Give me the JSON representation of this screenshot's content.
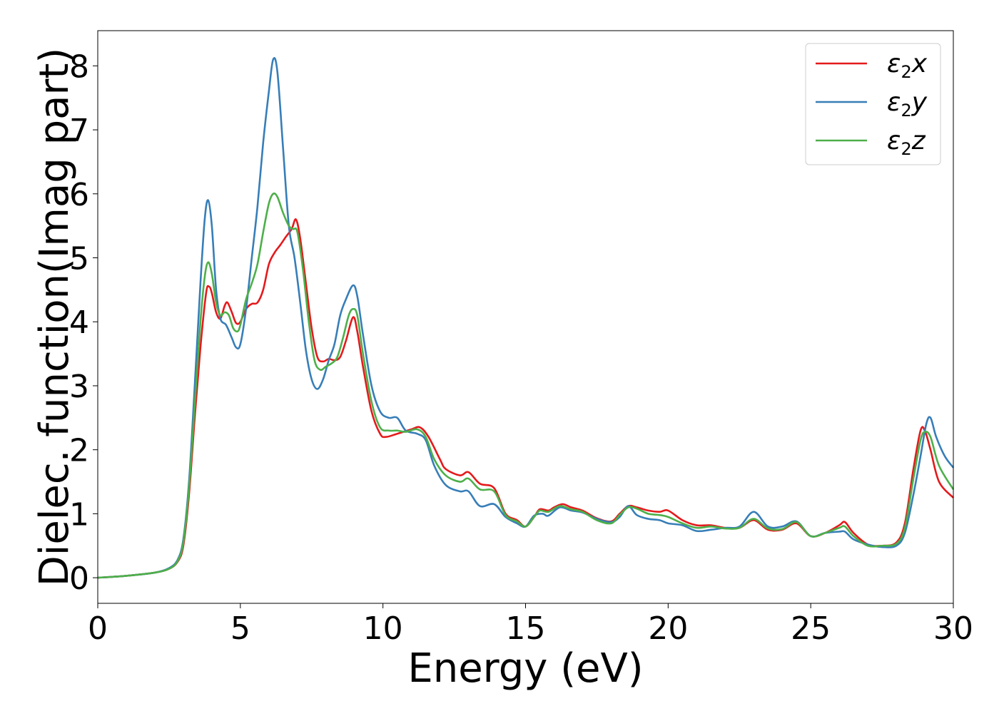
{
  "chart_data": {
    "type": "line",
    "title": "",
    "xlabel": "Energy (eV)",
    "ylabel": "Dielec. function(Imag part)",
    "xlim": [
      0,
      30
    ],
    "ylim": [
      -0.4,
      8.55
    ],
    "xticks": [
      0,
      5,
      10,
      15,
      20,
      25,
      30
    ],
    "xtick_labels": [
      "0",
      "5",
      "10",
      "15",
      "20",
      "25",
      "30"
    ],
    "yticks": [
      0,
      1,
      2,
      3,
      4,
      5,
      6,
      7,
      8
    ],
    "ytick_labels": [
      "0",
      "1",
      "2",
      "3",
      "4",
      "5",
      "6",
      "7",
      "8"
    ],
    "grid": false,
    "legend_position": "top-right",
    "series": [
      {
        "name": "ε₂x",
        "legend": {
          "base": "ε",
          "sub": "2",
          "axis": "x"
        },
        "color": "#e41a1c",
        "points": [
          [
            0,
            0.0
          ],
          [
            1,
            0.03
          ],
          [
            2,
            0.08
          ],
          [
            2.5,
            0.14
          ],
          [
            2.8,
            0.25
          ],
          [
            3.0,
            0.5
          ],
          [
            3.2,
            1.3
          ],
          [
            3.4,
            2.5
          ],
          [
            3.6,
            3.6
          ],
          [
            3.8,
            4.45
          ],
          [
            3.9,
            4.55
          ],
          [
            4.0,
            4.45
          ],
          [
            4.15,
            4.15
          ],
          [
            4.3,
            4.05
          ],
          [
            4.45,
            4.25
          ],
          [
            4.55,
            4.3
          ],
          [
            4.7,
            4.15
          ],
          [
            4.85,
            3.98
          ],
          [
            5.0,
            4.0
          ],
          [
            5.2,
            4.2
          ],
          [
            5.4,
            4.28
          ],
          [
            5.6,
            4.3
          ],
          [
            5.8,
            4.5
          ],
          [
            6.0,
            4.9
          ],
          [
            6.2,
            5.08
          ],
          [
            6.4,
            5.2
          ],
          [
            6.6,
            5.33
          ],
          [
            6.8,
            5.45
          ],
          [
            6.95,
            5.6
          ],
          [
            7.1,
            5.3
          ],
          [
            7.3,
            4.6
          ],
          [
            7.5,
            3.9
          ],
          [
            7.7,
            3.45
          ],
          [
            7.9,
            3.38
          ],
          [
            8.1,
            3.42
          ],
          [
            8.3,
            3.4
          ],
          [
            8.5,
            3.45
          ],
          [
            8.7,
            3.7
          ],
          [
            8.95,
            4.07
          ],
          [
            9.1,
            3.85
          ],
          [
            9.3,
            3.3
          ],
          [
            9.6,
            2.6
          ],
          [
            9.9,
            2.25
          ],
          [
            10.1,
            2.2
          ],
          [
            10.5,
            2.25
          ],
          [
            11.0,
            2.32
          ],
          [
            11.3,
            2.35
          ],
          [
            11.6,
            2.2
          ],
          [
            12.0,
            1.85
          ],
          [
            12.2,
            1.7
          ],
          [
            12.7,
            1.6
          ],
          [
            13.0,
            1.65
          ],
          [
            13.4,
            1.47
          ],
          [
            13.9,
            1.4
          ],
          [
            14.3,
            1.0
          ],
          [
            14.7,
            0.9
          ],
          [
            15.0,
            0.8
          ],
          [
            15.3,
            0.95
          ],
          [
            15.5,
            1.07
          ],
          [
            15.8,
            1.05
          ],
          [
            16.0,
            1.1
          ],
          [
            16.3,
            1.15
          ],
          [
            16.6,
            1.1
          ],
          [
            17.0,
            1.05
          ],
          [
            17.5,
            0.93
          ],
          [
            18.0,
            0.88
          ],
          [
            18.3,
            1.0
          ],
          [
            18.6,
            1.12
          ],
          [
            18.9,
            1.1
          ],
          [
            19.3,
            1.05
          ],
          [
            19.7,
            1.03
          ],
          [
            20.0,
            1.05
          ],
          [
            20.5,
            0.9
          ],
          [
            21.0,
            0.82
          ],
          [
            21.5,
            0.82
          ],
          [
            22.0,
            0.78
          ],
          [
            22.5,
            0.78
          ],
          [
            23.0,
            0.9
          ],
          [
            23.5,
            0.75
          ],
          [
            24.0,
            0.75
          ],
          [
            24.5,
            0.85
          ],
          [
            25.0,
            0.65
          ],
          [
            25.5,
            0.7
          ],
          [
            26.0,
            0.82
          ],
          [
            26.2,
            0.87
          ],
          [
            26.5,
            0.7
          ],
          [
            27.0,
            0.52
          ],
          [
            27.5,
            0.5
          ],
          [
            28.0,
            0.55
          ],
          [
            28.3,
            0.85
          ],
          [
            28.6,
            1.7
          ],
          [
            28.85,
            2.3
          ],
          [
            29.0,
            2.3
          ],
          [
            29.2,
            2.0
          ],
          [
            29.5,
            1.5
          ],
          [
            30.0,
            1.25
          ]
        ]
      },
      {
        "name": "ε₂y",
        "legend": {
          "base": "ε",
          "sub": "2",
          "axis": "y"
        },
        "color": "#377eb8",
        "points": [
          [
            0,
            0.0
          ],
          [
            1,
            0.03
          ],
          [
            2,
            0.08
          ],
          [
            2.5,
            0.15
          ],
          [
            2.8,
            0.28
          ],
          [
            3.0,
            0.6
          ],
          [
            3.2,
            1.5
          ],
          [
            3.4,
            3.0
          ],
          [
            3.6,
            4.6
          ],
          [
            3.75,
            5.6
          ],
          [
            3.87,
            5.9
          ],
          [
            4.0,
            5.5
          ],
          [
            4.15,
            4.5
          ],
          [
            4.3,
            4.05
          ],
          [
            4.5,
            3.95
          ],
          [
            4.7,
            3.75
          ],
          [
            4.85,
            3.6
          ],
          [
            5.0,
            3.65
          ],
          [
            5.2,
            4.2
          ],
          [
            5.4,
            5.0
          ],
          [
            5.6,
            5.8
          ],
          [
            5.8,
            6.8
          ],
          [
            6.0,
            7.6
          ],
          [
            6.15,
            8.1
          ],
          [
            6.3,
            7.9
          ],
          [
            6.5,
            6.7
          ],
          [
            6.7,
            5.5
          ],
          [
            6.9,
            5.0
          ],
          [
            7.1,
            4.3
          ],
          [
            7.3,
            3.55
          ],
          [
            7.5,
            3.1
          ],
          [
            7.7,
            2.95
          ],
          [
            7.9,
            3.1
          ],
          [
            8.1,
            3.4
          ],
          [
            8.3,
            3.65
          ],
          [
            8.5,
            4.1
          ],
          [
            8.7,
            4.35
          ],
          [
            8.95,
            4.57
          ],
          [
            9.1,
            4.4
          ],
          [
            9.3,
            3.8
          ],
          [
            9.6,
            3.0
          ],
          [
            9.9,
            2.6
          ],
          [
            10.2,
            2.5
          ],
          [
            10.5,
            2.5
          ],
          [
            10.8,
            2.3
          ],
          [
            11.2,
            2.25
          ],
          [
            11.5,
            2.15
          ],
          [
            11.8,
            1.75
          ],
          [
            12.2,
            1.45
          ],
          [
            12.7,
            1.35
          ],
          [
            13.0,
            1.35
          ],
          [
            13.4,
            1.12
          ],
          [
            13.9,
            1.15
          ],
          [
            14.3,
            0.95
          ],
          [
            14.7,
            0.85
          ],
          [
            15.0,
            0.8
          ],
          [
            15.3,
            0.97
          ],
          [
            15.6,
            1.0
          ],
          [
            15.8,
            0.97
          ],
          [
            16.2,
            1.1
          ],
          [
            16.6,
            1.05
          ],
          [
            17.0,
            1.02
          ],
          [
            17.5,
            0.92
          ],
          [
            18.0,
            0.87
          ],
          [
            18.3,
            0.95
          ],
          [
            18.6,
            1.12
          ],
          [
            18.9,
            0.98
          ],
          [
            19.3,
            0.92
          ],
          [
            19.7,
            0.9
          ],
          [
            20.0,
            0.85
          ],
          [
            20.5,
            0.82
          ],
          [
            21.0,
            0.73
          ],
          [
            21.5,
            0.75
          ],
          [
            22.0,
            0.78
          ],
          [
            22.5,
            0.8
          ],
          [
            23.0,
            1.03
          ],
          [
            23.5,
            0.8
          ],
          [
            24.0,
            0.8
          ],
          [
            24.5,
            0.88
          ],
          [
            25.0,
            0.65
          ],
          [
            25.5,
            0.7
          ],
          [
            26.0,
            0.72
          ],
          [
            26.2,
            0.72
          ],
          [
            26.5,
            0.6
          ],
          [
            27.0,
            0.52
          ],
          [
            27.5,
            0.48
          ],
          [
            28.0,
            0.5
          ],
          [
            28.3,
            0.7
          ],
          [
            28.6,
            1.3
          ],
          [
            28.85,
            1.9
          ],
          [
            29.05,
            2.4
          ],
          [
            29.2,
            2.5
          ],
          [
            29.4,
            2.2
          ],
          [
            29.7,
            1.9
          ],
          [
            30.0,
            1.72
          ]
        ]
      },
      {
        "name": "ε₂z",
        "legend": {
          "base": "ε",
          "sub": "2",
          "axis": "z"
        },
        "color": "#4daf4a",
        "points": [
          [
            0,
            0.0
          ],
          [
            1,
            0.03
          ],
          [
            2,
            0.08
          ],
          [
            2.5,
            0.14
          ],
          [
            2.8,
            0.26
          ],
          [
            3.0,
            0.55
          ],
          [
            3.2,
            1.4
          ],
          [
            3.4,
            2.7
          ],
          [
            3.6,
            4.0
          ],
          [
            3.75,
            4.7
          ],
          [
            3.87,
            4.93
          ],
          [
            4.0,
            4.75
          ],
          [
            4.15,
            4.3
          ],
          [
            4.3,
            4.1
          ],
          [
            4.45,
            4.15
          ],
          [
            4.6,
            4.1
          ],
          [
            4.75,
            3.9
          ],
          [
            4.9,
            3.85
          ],
          [
            5.0,
            3.95
          ],
          [
            5.2,
            4.35
          ],
          [
            5.4,
            4.6
          ],
          [
            5.6,
            4.9
          ],
          [
            5.8,
            5.4
          ],
          [
            6.0,
            5.85
          ],
          [
            6.15,
            6.0
          ],
          [
            6.3,
            5.95
          ],
          [
            6.5,
            5.7
          ],
          [
            6.7,
            5.5
          ],
          [
            6.85,
            5.45
          ],
          [
            7.0,
            5.4
          ],
          [
            7.2,
            4.8
          ],
          [
            7.4,
            4.0
          ],
          [
            7.6,
            3.4
          ],
          [
            7.8,
            3.25
          ],
          [
            8.0,
            3.3
          ],
          [
            8.2,
            3.35
          ],
          [
            8.4,
            3.45
          ],
          [
            8.6,
            3.75
          ],
          [
            8.8,
            4.1
          ],
          [
            8.95,
            4.2
          ],
          [
            9.1,
            4.1
          ],
          [
            9.3,
            3.5
          ],
          [
            9.6,
            2.75
          ],
          [
            9.9,
            2.35
          ],
          [
            10.2,
            2.3
          ],
          [
            10.5,
            2.3
          ],
          [
            10.8,
            2.28
          ],
          [
            11.2,
            2.32
          ],
          [
            11.5,
            2.2
          ],
          [
            11.8,
            1.85
          ],
          [
            12.2,
            1.6
          ],
          [
            12.7,
            1.5
          ],
          [
            13.0,
            1.55
          ],
          [
            13.4,
            1.38
          ],
          [
            13.9,
            1.35
          ],
          [
            14.3,
            0.98
          ],
          [
            14.7,
            0.88
          ],
          [
            15.0,
            0.8
          ],
          [
            15.3,
            0.95
          ],
          [
            15.5,
            1.05
          ],
          [
            15.8,
            1.03
          ],
          [
            16.2,
            1.12
          ],
          [
            16.6,
            1.07
          ],
          [
            17.0,
            1.03
          ],
          [
            17.5,
            0.9
          ],
          [
            18.0,
            0.85
          ],
          [
            18.3,
            0.98
          ],
          [
            18.6,
            1.1
          ],
          [
            18.9,
            1.08
          ],
          [
            19.3,
            1.0
          ],
          [
            19.7,
            0.98
          ],
          [
            20.0,
            0.95
          ],
          [
            20.5,
            0.85
          ],
          [
            21.0,
            0.78
          ],
          [
            21.5,
            0.8
          ],
          [
            22.0,
            0.77
          ],
          [
            22.5,
            0.78
          ],
          [
            23.0,
            0.92
          ],
          [
            23.5,
            0.77
          ],
          [
            24.0,
            0.76
          ],
          [
            24.5,
            0.87
          ],
          [
            25.0,
            0.65
          ],
          [
            25.5,
            0.7
          ],
          [
            26.0,
            0.78
          ],
          [
            26.2,
            0.8
          ],
          [
            26.5,
            0.65
          ],
          [
            27.0,
            0.5
          ],
          [
            27.5,
            0.5
          ],
          [
            28.0,
            0.53
          ],
          [
            28.3,
            0.78
          ],
          [
            28.6,
            1.55
          ],
          [
            28.85,
            2.15
          ],
          [
            29.0,
            2.28
          ],
          [
            29.2,
            2.2
          ],
          [
            29.5,
            1.75
          ],
          [
            30.0,
            1.38
          ]
        ]
      }
    ]
  }
}
